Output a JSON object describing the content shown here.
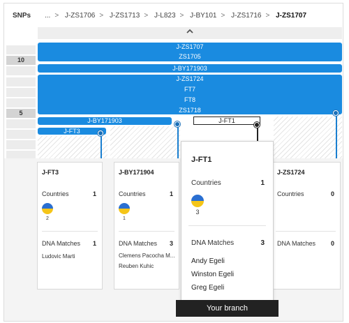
{
  "header": {
    "snps_label": "SNPs",
    "ellipsis": "...",
    "breadcrumbs": [
      "J-ZS1706",
      "J-ZS1713",
      "J-L823",
      "J-BY101",
      "J-ZS1716",
      "J-ZS1707"
    ],
    "separator": ">"
  },
  "snp_counts": {
    "row_10": "10",
    "row_5": "5"
  },
  "tree": {
    "main_bar": [
      "J-ZS1707",
      "ZS1705"
    ],
    "bar_by171903_top": "J-BY171903",
    "big_bar": [
      "J-ZS1724",
      "FT7",
      "FT8",
      "ZS1718"
    ],
    "bar_by171903_left": "J-BY171903",
    "bar_ft1": "J-FT1",
    "bar_ft3": "J-FT3"
  },
  "cards": [
    {
      "title": "J-FT3",
      "countries_label": "Countries",
      "countries_count": "1",
      "flag_count": "2",
      "matches_label": "DNA Matches",
      "matches_count": "1",
      "names": [
        "Ludovic Marti"
      ]
    },
    {
      "title": "J-BY171904",
      "countries_label": "Countries",
      "countries_count": "1",
      "flag_count": "1",
      "matches_label": "DNA Matches",
      "matches_count": "3",
      "names": [
        "Clemens Pacocha M...",
        "Reuben Kuhic"
      ]
    },
    {
      "title": "J-ZS1724",
      "countries_label": "Countries",
      "countries_count": "0",
      "matches_label": "DNA Matches",
      "matches_count": "0"
    }
  ],
  "popup": {
    "title": "J-FT1",
    "countries_label": "Countries",
    "countries_count": "1",
    "flag_count": "3",
    "matches_label": "DNA Matches",
    "matches_count": "3",
    "names": [
      "Andy Egeli",
      "Winston Egeli",
      "Greg Egeli"
    ]
  },
  "your_branch_label": "Your branch",
  "colors": {
    "accent": "#1a8be0",
    "dark": "#222222",
    "flag_blue": "#2a6fd1",
    "flag_yellow": "#f5c518"
  }
}
